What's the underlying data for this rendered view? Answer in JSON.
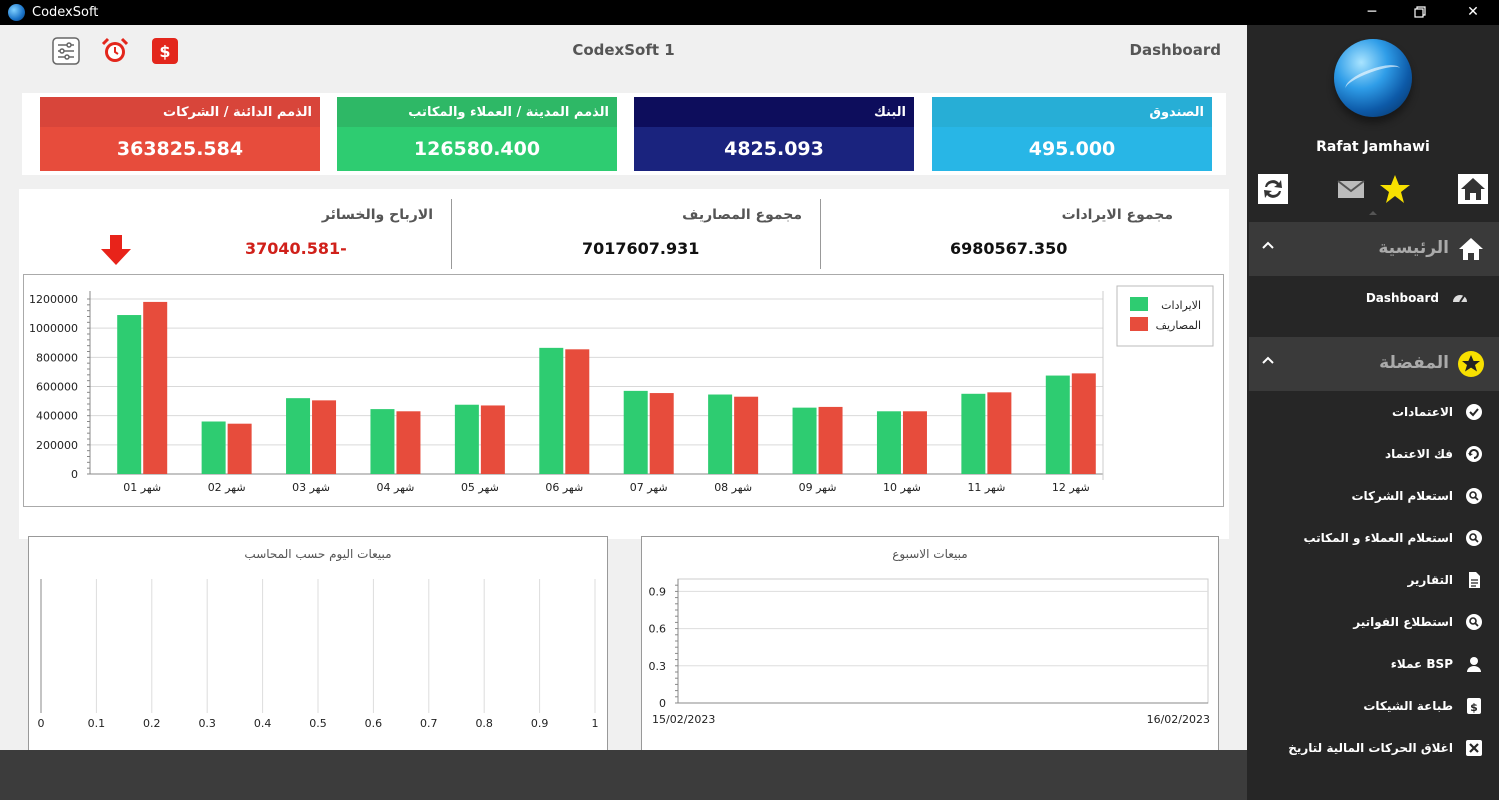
{
  "window": {
    "app_title": "CodexSoft"
  },
  "header": {
    "title": "CodexSoft 1",
    "section": "Dashboard"
  },
  "kpis": [
    {
      "label": "الصندوق",
      "value": "495.000",
      "head_color": "#27aed6",
      "body_color": "#28b6e6"
    },
    {
      "label": "البنك",
      "value": "4825.093",
      "head_color": "#0d0d5c",
      "body_color": "#1a237e"
    },
    {
      "label": "الذمم المدينة / العملاء والمكاتب",
      "value": "126580.400",
      "head_color": "#2eb866",
      "body_color": "#2ecc71"
    },
    {
      "label": "الذمم الدائنة / الشركات",
      "value": "363825.584",
      "head_color": "#d8453a",
      "body_color": "#e74c3c"
    }
  ],
  "totals": {
    "revenue_label": "مجموع الايرادات",
    "revenue_value": "6980567.350",
    "expenses_label": "مجموع المصاريف",
    "expenses_value": "7017607.931",
    "pnl_label": "الارباح والخسائر",
    "pnl_value": "37040.581-"
  },
  "chart_data": [
    {
      "type": "bar",
      "categories": [
        "شهر 01",
        "شهر 02",
        "شهر 03",
        "شهر 04",
        "شهر 05",
        "شهر 06",
        "شهر 07",
        "شهر 08",
        "شهر 09",
        "شهر 10",
        "شهر 11",
        "شهر 12"
      ],
      "series": [
        {
          "name": "الايرادات",
          "color": "#2ecc71",
          "values": [
            1090000,
            360000,
            520000,
            445000,
            475000,
            865000,
            570000,
            545000,
            455000,
            430000,
            550000,
            675000
          ]
        },
        {
          "name": "المصاريف",
          "color": "#e74c3c",
          "values": [
            1180000,
            345000,
            505000,
            430000,
            470000,
            855000,
            555000,
            530000,
            460000,
            430000,
            560000,
            690000
          ]
        }
      ],
      "ylim": [
        0,
        1200000
      ],
      "yticks": [
        "0",
        "200000",
        "400000",
        "600000",
        "800000",
        "1000000",
        "1200000"
      ],
      "legend": "top-right",
      "grid": true
    },
    {
      "type": "line",
      "title": "مبيعات الاسبوع",
      "x": [
        "15/02/2023",
        "16/02/2023"
      ],
      "yticks": [
        "0",
        "0.3",
        "0.6",
        "0.9"
      ],
      "series": [],
      "grid": true
    },
    {
      "type": "bar",
      "title": "مبيعات اليوم حسب المحاسب",
      "xticks": [
        "0",
        "0.1",
        "0.2",
        "0.3",
        "0.4",
        "0.5",
        "0.6",
        "0.7",
        "0.8",
        "0.9",
        "1"
      ],
      "series": [],
      "grid": true
    }
  ],
  "sidebar": {
    "user_name": "Rafat Jamhawi",
    "section_home": "الرئيسية",
    "home_items": [
      {
        "label": "Dashboard",
        "icon": "speedometer-icon"
      }
    ],
    "section_fav": "المفضلة",
    "fav_items": [
      {
        "label": "الاعتمادات",
        "icon": "check-circle-icon"
      },
      {
        "label": "فك الاعتماد",
        "icon": "undo-circle-icon"
      },
      {
        "label": "استعلام الشركات",
        "icon": "search-icon"
      },
      {
        "label": "استعلام العملاء و المكاتب",
        "icon": "search-icon"
      },
      {
        "label": "التقارير",
        "icon": "report-icon"
      },
      {
        "label": "استطلاع الفواتير",
        "icon": "search-icon"
      },
      {
        "label": "عملاء BSP",
        "icon": "user-icon"
      },
      {
        "label": "طباعة الشيكات",
        "icon": "dollar-icon"
      },
      {
        "label": "اغلاق الحركات المالية لتاريخ",
        "icon": "close-box-icon"
      }
    ]
  }
}
